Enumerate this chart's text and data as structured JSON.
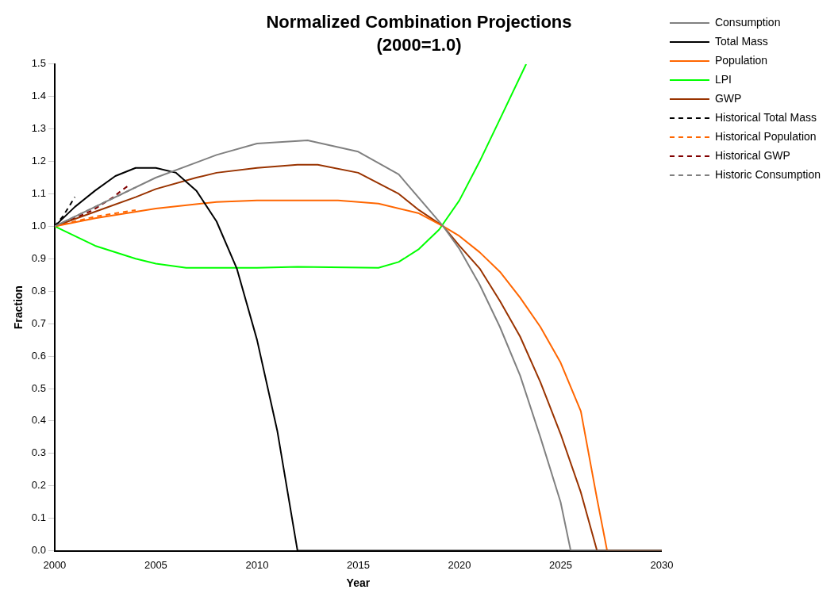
{
  "chart_data": {
    "type": "line",
    "title": "Normalized Combination Projections",
    "subtitle": "(2000=1.0)",
    "xlabel": "Year",
    "ylabel": "Fraction",
    "xlim": [
      2000,
      2030
    ],
    "xticks": [
      2000,
      2005,
      2010,
      2015,
      2020,
      2025,
      2030
    ],
    "ylim": [
      0,
      1.5
    ],
    "yticks": [
      {
        "value": 0,
        "label": "0.0"
      },
      0.1,
      0.2,
      0.3,
      0.4,
      0.5,
      0.6,
      0.7,
      0.8,
      0.9,
      {
        "value": 1,
        "label": "1.0"
      },
      1.1,
      1.2,
      1.3,
      1.4,
      1.5
    ],
    "grid": false,
    "legend": "right",
    "marker": "none",
    "series": [
      {
        "name": "Consumption",
        "color": "#808080",
        "line_style": "solid",
        "x": [
          2000,
          2002,
          2005,
          2008,
          2010,
          2012.5,
          2015,
          2017,
          2019.2,
          2020,
          2021,
          2022,
          2023,
          2024,
          2025,
          2025.5,
          2030
        ],
        "values": [
          1.0,
          1.06,
          1.15,
          1.22,
          1.255,
          1.265,
          1.23,
          1.16,
          1.0,
          0.93,
          0.82,
          0.69,
          0.54,
          0.35,
          0.15,
          0.0,
          0.0
        ]
      },
      {
        "name": "Total Mass",
        "color": "#000000",
        "line_style": "solid",
        "x": [
          2000,
          2001,
          2002,
          2003,
          2004,
          2005,
          2006,
          2007,
          2008,
          2009,
          2010,
          2011,
          2012,
          2030
        ],
        "values": [
          1.0,
          1.06,
          1.11,
          1.155,
          1.18,
          1.18,
          1.165,
          1.11,
          1.015,
          0.87,
          0.65,
          0.37,
          0.0,
          0.0
        ]
      },
      {
        "name": "Population",
        "color": "#ff6600",
        "line_style": "solid",
        "x": [
          2000,
          2002,
          2005,
          2008,
          2010,
          2014,
          2016,
          2018,
          2019.2,
          2020,
          2021,
          2022,
          2023,
          2024,
          2025,
          2026,
          2026.8,
          2027.3,
          2030
        ],
        "values": [
          1.0,
          1.025,
          1.055,
          1.075,
          1.08,
          1.08,
          1.07,
          1.04,
          1.0,
          0.97,
          0.92,
          0.86,
          0.78,
          0.69,
          0.58,
          0.43,
          0.16,
          0.0,
          0.0
        ]
      },
      {
        "name": "LPI",
        "color": "#00ff00",
        "line_style": "solid",
        "x": [
          2000,
          2002,
          2004,
          2005,
          2006.5,
          2010,
          2012,
          2016,
          2017,
          2018,
          2019,
          2020,
          2021,
          2022,
          2023.3
        ],
        "values": [
          1.0,
          0.94,
          0.9,
          0.885,
          0.872,
          0.872,
          0.875,
          0.872,
          0.89,
          0.93,
          0.99,
          1.08,
          1.2,
          1.33,
          1.5
        ]
      },
      {
        "name": "GWP",
        "color": "#993300",
        "line_style": "solid",
        "x": [
          2000,
          2002,
          2004,
          2005,
          2007,
          2008,
          2010,
          2012,
          2013,
          2015,
          2017,
          2018,
          2019.2,
          2020,
          2021,
          2022,
          2023,
          2024,
          2025,
          2026,
          2026.8,
          2030
        ],
        "values": [
          1.0,
          1.045,
          1.09,
          1.115,
          1.15,
          1.165,
          1.18,
          1.19,
          1.19,
          1.165,
          1.1,
          1.05,
          1.0,
          0.94,
          0.87,
          0.77,
          0.66,
          0.52,
          0.36,
          0.18,
          0.0,
          0.0
        ]
      },
      {
        "name": "Historical Total Mass",
        "color": "#000000",
        "line_style": "dashed",
        "x": [
          2000,
          2000.4,
          2000.7,
          2001.0
        ],
        "values": [
          1.0,
          1.03,
          1.06,
          1.09
        ]
      },
      {
        "name": "Historical Population",
        "color": "#ff6600",
        "line_style": "dashed",
        "x": [
          2000,
          2001,
          2002,
          2003,
          2004
        ],
        "values": [
          1.0,
          1.015,
          1.03,
          1.04,
          1.05
        ]
      },
      {
        "name": "Historical GWP",
        "color": "#800000",
        "line_style": "dashed",
        "x": [
          2000,
          2001,
          2001.9,
          2002.4,
          2002.9,
          2003.3,
          2003.75
        ],
        "values": [
          1.0,
          1.025,
          1.05,
          1.07,
          1.09,
          1.11,
          1.13
        ]
      },
      {
        "name": "Historic Consumption",
        "color": "#808080",
        "line_style": "dashed",
        "x": [
          2000,
          2001,
          2002,
          2003,
          2004
        ],
        "values": [
          1.0,
          1.03,
          1.06,
          1.09,
          1.12
        ]
      }
    ]
  }
}
